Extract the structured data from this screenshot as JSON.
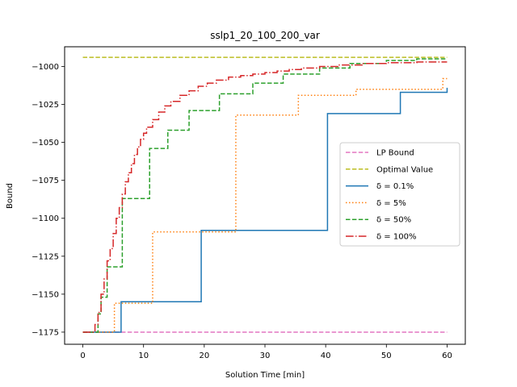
{
  "chart_data": {
    "type": "line",
    "title": "sslp1_20_100_200_var",
    "xlabel": "Solution Time [min]",
    "ylabel": "Bound",
    "xlim": [
      -3,
      63
    ],
    "ylim": [
      -1183,
      -987
    ],
    "xticks": [
      0,
      10,
      20,
      30,
      40,
      50,
      60
    ],
    "yticks": [
      -1000,
      -1025,
      -1050,
      -1075,
      -1100,
      -1125,
      -1150,
      -1175
    ],
    "xtick_labels": [
      "0",
      "10",
      "20",
      "30",
      "40",
      "50",
      "60"
    ],
    "ytick_labels": [
      "−1000",
      "−1025",
      "−1050",
      "−1075",
      "−1100",
      "−1125",
      "−1150",
      "−1175"
    ],
    "legend_position": "center-right",
    "series": [
      {
        "name": "LP Bound",
        "color": "#e377c2",
        "dash": "dashed",
        "step": false,
        "x": [
          0,
          60
        ],
        "y": [
          -1175,
          -1175
        ]
      },
      {
        "name": "Optimal Value",
        "color": "#bcbd22",
        "dash": "dashed",
        "step": false,
        "x": [
          0,
          60
        ],
        "y": [
          -994,
          -994
        ]
      },
      {
        "name": "δ = 0.1%",
        "color": "#1f77b4",
        "dash": "solid",
        "step": true,
        "x": [
          0,
          6.3,
          19.5,
          40.3,
          52.3,
          60
        ],
        "y": [
          -1175,
          -1155,
          -1108,
          -1031,
          -1017,
          -1014
        ]
      },
      {
        "name": "δ = 5%",
        "color": "#ff7f0e",
        "dash": "dotted",
        "step": true,
        "x": [
          0,
          5.2,
          11.5,
          25.2,
          35.5,
          45,
          59.3,
          60
        ],
        "y": [
          -1175,
          -1156,
          -1109,
          -1032,
          -1019,
          -1015,
          -1008,
          -1008
        ]
      },
      {
        "name": "δ = 50%",
        "color": "#2ca02c",
        "dash": "dashed",
        "step": true,
        "x": [
          0,
          2.5,
          3,
          4,
          6.5,
          11,
          14,
          17.5,
          22.5,
          28,
          33,
          39,
          44,
          50,
          55,
          60
        ],
        "y": [
          -1175,
          -1163,
          -1152,
          -1132,
          -1087,
          -1054,
          -1042,
          -1029,
          -1018,
          -1011,
          -1005,
          -1001,
          -998,
          -996,
          -995,
          -995
        ]
      },
      {
        "name": "δ = 100%",
        "color": "#d62728",
        "dash": "dashdot",
        "step": true,
        "x": [
          0,
          2.0,
          2.5,
          3,
          3.5,
          4,
          4.5,
          5,
          5.5,
          6,
          6.5,
          7,
          7.5,
          8,
          8.5,
          9,
          9.5,
          10,
          10.5,
          11.5,
          12.5,
          13.5,
          14.5,
          16,
          17.5,
          19,
          20.5,
          22,
          24,
          26,
          28,
          30,
          32,
          34,
          36,
          39,
          42,
          46,
          50,
          55,
          60
        ],
        "y": [
          -1175,
          -1170,
          -1162,
          -1150,
          -1140,
          -1128,
          -1120,
          -1110,
          -1100,
          -1093,
          -1084,
          -1076,
          -1070,
          -1064,
          -1058,
          -1053,
          -1048,
          -1044,
          -1040,
          -1035,
          -1030,
          -1026,
          -1023,
          -1019,
          -1016,
          -1013,
          -1011,
          -1009,
          -1007,
          -1006,
          -1005,
          -1004,
          -1003,
          -1002,
          -1001,
          -1000,
          -999,
          -998,
          -997.5,
          -997,
          -997
        ]
      }
    ]
  }
}
